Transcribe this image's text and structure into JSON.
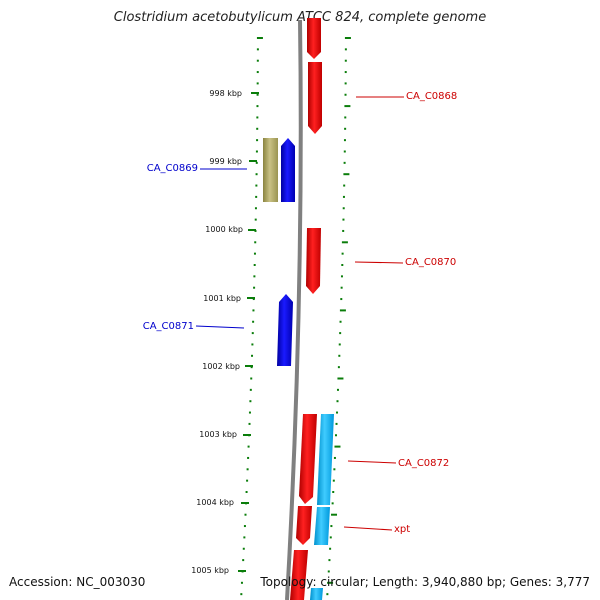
{
  "title": "Clostridium acetobutylicum ATCC 824, complete genome",
  "footer": {
    "accession": "Accession: NC_003030",
    "topology": "Topology: circular; Length: 3,940,880 bp; Genes: 3,777"
  },
  "colors": {
    "forward_gene": "#ee1111",
    "reverse_gene": "#1111ee",
    "olive_feature": "#b5ad6a",
    "cyan_feature": "#22bbee",
    "tick": "#0a7d0a",
    "backbone": "#808080"
  },
  "scale_labels": [
    "998 kbp",
    "999 kbp",
    "1000 kbp",
    "1001 kbp",
    "1002 kbp",
    "1003 kbp",
    "1004 kbp",
    "1005 kbp"
  ],
  "gene_labels": [
    {
      "text": "CA_C0868",
      "strand": "forward"
    },
    {
      "text": "CA_C0869",
      "strand": "reverse"
    },
    {
      "text": "CA_C0870",
      "strand": "forward"
    },
    {
      "text": "CA_C0871",
      "strand": "reverse"
    },
    {
      "text": "CA_C0872",
      "strand": "forward"
    },
    {
      "text": "xpt",
      "strand": "forward"
    }
  ]
}
